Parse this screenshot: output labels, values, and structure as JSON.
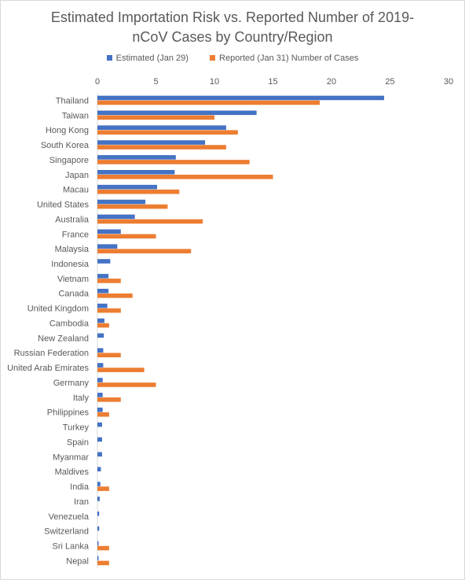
{
  "chart_data": {
    "type": "bar",
    "orientation": "horizontal",
    "title_lines": [
      "Estimated Importation Risk vs. Reported Number of 2019-",
      "nCoV Cases by Country/Region"
    ],
    "xlim": [
      0,
      30
    ],
    "xticks": [
      0,
      5,
      10,
      15,
      20,
      25,
      30
    ],
    "grid": false,
    "legend_position": "top",
    "categories": [
      "Thailand",
      "Taiwan",
      "Hong Kong",
      "South Korea",
      "Singapore",
      "Japan",
      "Macau",
      "United States",
      "Australia",
      "France",
      "Malaysia",
      "Indonesia",
      "Vietnam",
      "Canada",
      "United Kingdom",
      "Cambodia",
      "New Zealand",
      "Russian Federation",
      "United Arab Emirates",
      "Germany",
      "Italy",
      "Philippines",
      "Turkey",
      "Spain",
      "Myanmar",
      "Maldives",
      "India",
      "Iran",
      "Venezuela",
      "Switzerland",
      "Sri Lanka",
      "Nepal"
    ],
    "series": [
      {
        "name": "Estimated (Jan 29)",
        "color": "#4472c4",
        "values": [
          24.5,
          13.6,
          11,
          9.2,
          6.7,
          6.6,
          5.1,
          4.1,
          3.2,
          2,
          1.7,
          1.1,
          0.95,
          0.95,
          0.85,
          0.6,
          0.55,
          0.5,
          0.5,
          0.45,
          0.45,
          0.45,
          0.4,
          0.4,
          0.4,
          0.3,
          0.25,
          0.2,
          0.15,
          0.15,
          0.1,
          0.1
        ]
      },
      {
        "name": "Reported (Jan 31) Number of Cases",
        "color": "#ed7d31",
        "values": [
          19,
          10,
          12,
          11,
          13,
          15,
          7,
          6,
          9,
          5,
          8,
          0,
          2,
          3,
          2,
          1,
          0,
          2,
          4,
          5,
          2,
          1,
          0,
          0,
          0,
          0,
          1,
          0,
          0,
          0,
          1,
          1
        ]
      }
    ]
  }
}
